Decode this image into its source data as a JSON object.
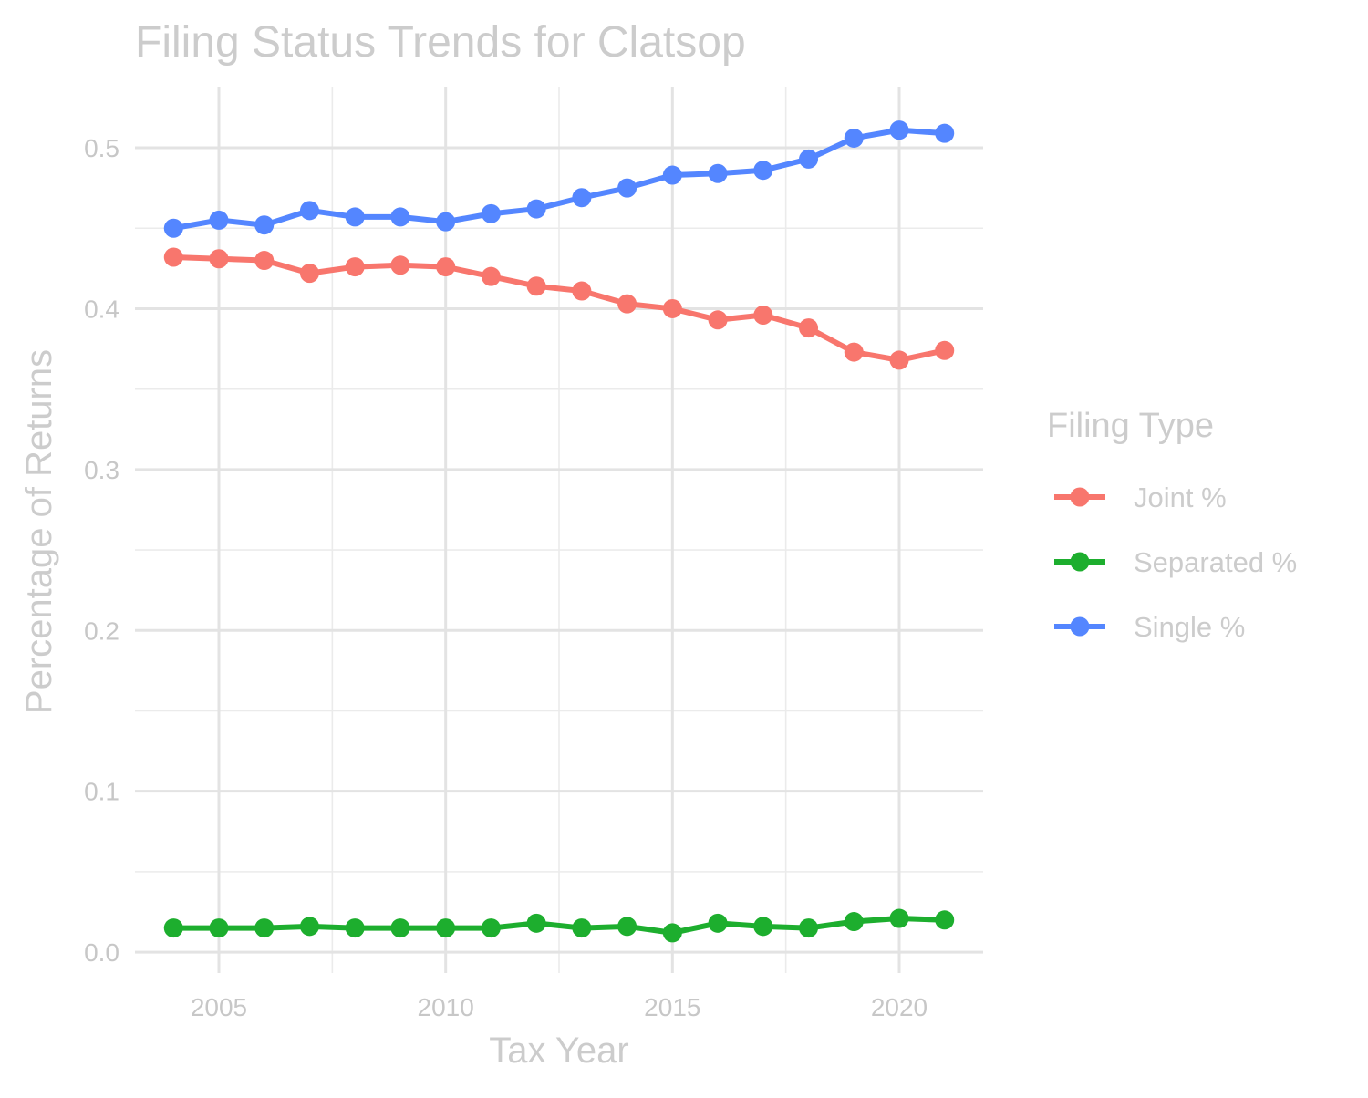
{
  "chart_data": {
    "type": "line",
    "title": "Filing Status Trends for Clatsop",
    "xlabel": "Tax Year",
    "ylabel": "Percentage of Returns",
    "x": [
      2004,
      2005,
      2006,
      2007,
      2008,
      2009,
      2010,
      2011,
      2012,
      2013,
      2014,
      2015,
      2016,
      2017,
      2018,
      2019,
      2020,
      2021
    ],
    "xlim": [
      2003.15,
      2021.85
    ],
    "ylim": [
      -0.013,
      0.538
    ],
    "x_ticks": [
      2005,
      2010,
      2015,
      2020
    ],
    "x_tick_labels": [
      "2005",
      "2010",
      "2015",
      "2020"
    ],
    "y_ticks": [
      0.0,
      0.1,
      0.2,
      0.3,
      0.4,
      0.5
    ],
    "y_tick_labels": [
      "0.0",
      "0.1",
      "0.2",
      "0.3",
      "0.4",
      "0.5"
    ],
    "grid": true,
    "legend": {
      "title": "Filing Type",
      "position": "right"
    },
    "series": [
      {
        "name": "Joint %",
        "color": "#F8766D",
        "values": [
          0.432,
          0.431,
          0.43,
          0.422,
          0.426,
          0.427,
          0.426,
          0.42,
          0.414,
          0.411,
          0.403,
          0.4,
          0.393,
          0.396,
          0.388,
          0.373,
          0.368,
          0.374
        ]
      },
      {
        "name": "Separated %",
        "color": "#1DAE2E",
        "values": [
          0.015,
          0.015,
          0.015,
          0.016,
          0.015,
          0.015,
          0.015,
          0.015,
          0.018,
          0.015,
          0.016,
          0.012,
          0.018,
          0.016,
          0.015,
          0.019,
          0.021,
          0.02
        ]
      },
      {
        "name": "Single %",
        "color": "#5486FF",
        "values": [
          0.45,
          0.455,
          0.452,
          0.461,
          0.457,
          0.457,
          0.454,
          0.459,
          0.462,
          0.469,
          0.475,
          0.483,
          0.484,
          0.486,
          0.493,
          0.506,
          0.511,
          0.509
        ]
      }
    ]
  }
}
